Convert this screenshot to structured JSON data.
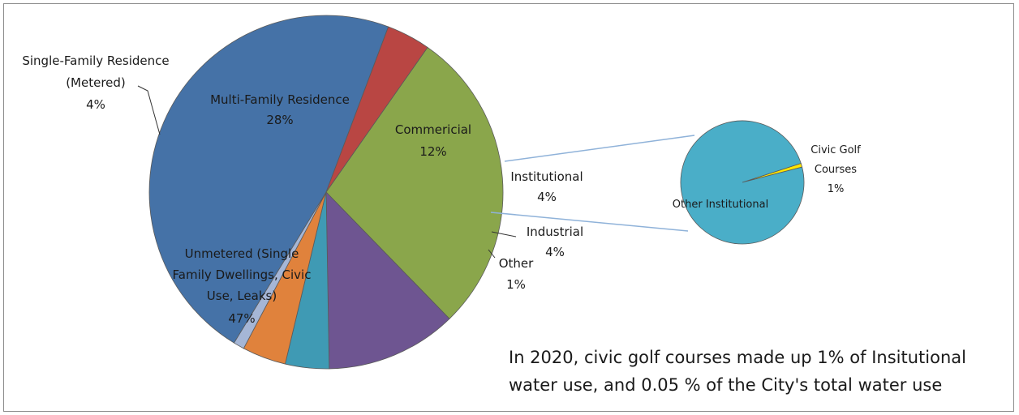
{
  "chart_data": [
    {
      "type": "pie",
      "slices": [
        {
          "label": "Multi-Family Residence",
          "pct_label": "28%",
          "value": 28,
          "color": "#8aa64b"
        },
        {
          "label": "Commericial",
          "pct_label": "12%",
          "value": 12,
          "color": "#6e5591"
        },
        {
          "label": "Institutional",
          "pct_label": "4%",
          "value": 4,
          "color": "#3f9ab4"
        },
        {
          "label": "Industrial",
          "pct_label": "4%",
          "value": 4,
          "color": "#e0823c"
        },
        {
          "label": "Other",
          "pct_label": "1%",
          "value": 1,
          "color": "#a5b6d6"
        },
        {
          "label": "Unmetered (Single Family Dwellings, Civic Use, Leaks)",
          "pct_label": "47%",
          "value": 47,
          "color": "#4572a7"
        },
        {
          "label": "Single-Family Residence (Metered)",
          "pct_label": "4%",
          "value": 4,
          "color": "#b94643"
        }
      ]
    },
    {
      "type": "pie",
      "slices": [
        {
          "label": "Civic Golf Courses",
          "pct_label": "1%",
          "value": 1,
          "color": "#ffe600"
        },
        {
          "label": "Other Institutional",
          "pct_label": "",
          "value": 99,
          "color": "#4aaec8"
        }
      ]
    }
  ],
  "labels": {
    "mfr_1": "Multi-Family Residence",
    "mfr_2": "28%",
    "com_1": "Commericial",
    "com_2": "12%",
    "inst_1": "Institutional",
    "inst_2": "4%",
    "ind_1": "Industrial",
    "ind_2": "4%",
    "oth_1": "Other",
    "oth_2": "1%",
    "unm_1": "Unmetered (Single",
    "unm_2": "Family Dwellings, Civic",
    "unm_3": "Use, Leaks)",
    "unm_4": "47%",
    "sfr_1": "Single-Family Residence",
    "sfr_2": "(Metered)",
    "sfr_3": "4%",
    "golf_1": "Civic Golf",
    "golf_2": "Courses",
    "golf_3": "1%",
    "otherinst_1": "Other Institutional"
  },
  "note": {
    "line1": "In 2020, civic golf courses made up 1% of Insitutional",
    "line2": "water use, and 0.05 % of the City's total water use"
  }
}
